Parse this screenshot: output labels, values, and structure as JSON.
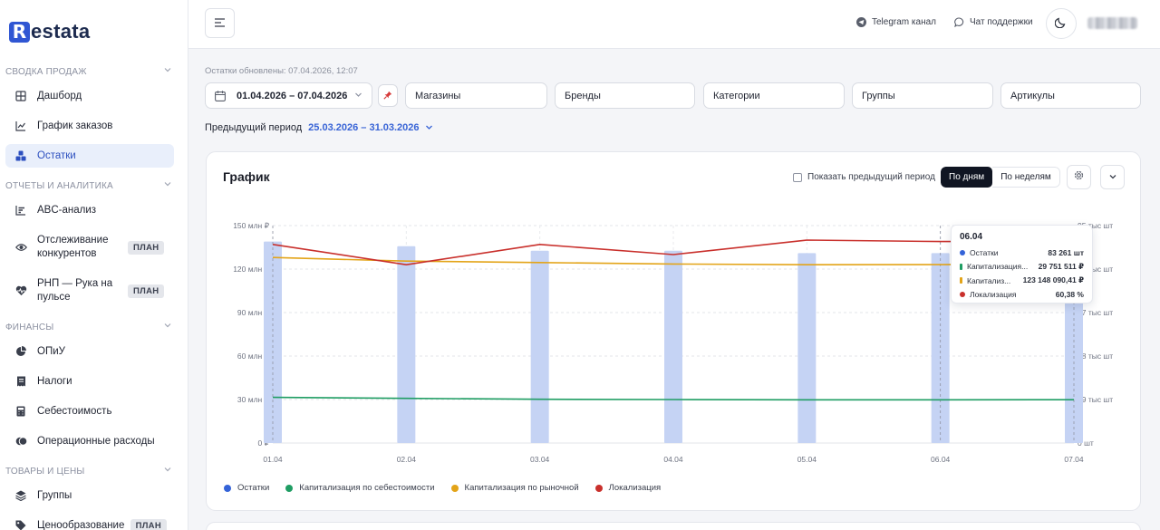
{
  "brand": {
    "logo_letter": "R",
    "logo_rest": "estata",
    "accent": "#3056d3"
  },
  "sidebar": {
    "sections": [
      {
        "label": "СВОДКА ПРОДАЖ"
      },
      {
        "label": "ОТЧЕТЫ И АНАЛИТИКА"
      },
      {
        "label": "ФИНАНСЫ"
      },
      {
        "label": "ТОВАРЫ И ЦЕНЫ"
      }
    ],
    "items": [
      {
        "label": "Дашборд",
        "icon": "grid-icon"
      },
      {
        "label": "График заказов",
        "icon": "line-chart-icon"
      },
      {
        "label": "Остатки",
        "icon": "boxes-icon",
        "active": true
      },
      {
        "label": "ABC-анализ",
        "icon": "bar-list-icon"
      },
      {
        "label": "Отслеживание конкурентов",
        "icon": "eye-icon",
        "badge": "ПЛАН"
      },
      {
        "label": "РНП — Рука на пульсе",
        "icon": "heart-pulse-icon",
        "badge": "ПЛАН"
      },
      {
        "label": "ОПиУ",
        "icon": "pie-chart-icon"
      },
      {
        "label": "Налоги",
        "icon": "receipt-icon"
      },
      {
        "label": "Себестоимость",
        "icon": "calculator-icon"
      },
      {
        "label": "Операционные расходы",
        "icon": "coins-icon"
      },
      {
        "label": "Группы",
        "icon": "stack-icon"
      },
      {
        "label": "Ценообразование",
        "icon": "tag-icon",
        "badge": "ПЛАН"
      }
    ]
  },
  "topbar": {
    "telegram": "Telegram канал",
    "support": "Чат поддержки"
  },
  "filters": {
    "updated": "Остатки обновлены: 07.04.2026, 12:07",
    "date_range": "01.04.2026 – 07.04.2026",
    "stores": "Магазины",
    "brands": "Бренды",
    "categories": "Категории",
    "groups": "Группы",
    "articles": "Артикулы",
    "prev_label": "Предыдущий период",
    "prev_value": "25.03.2026 – 31.03.2026"
  },
  "card": {
    "title": "График",
    "show_prev": "Показать предыдущий период",
    "by_days": "По дням",
    "by_weeks": "По неделям"
  },
  "chart_data": {
    "type": "bar",
    "categories": [
      "01.04",
      "02.04",
      "03.04",
      "04.04",
      "05.04",
      "06.04",
      "07.04"
    ],
    "y_left": {
      "ticks": [
        "0 ₽",
        "30 млн ₽",
        "60 млн ₽",
        "90 млн ₽",
        "120 млн ₽",
        "150 млн ₽"
      ],
      "ylim": [
        0,
        150
      ]
    },
    "y_right": {
      "ticks": [
        "0 шт",
        "19 тыс шт",
        "38 тыс шт",
        "57 тыс шт",
        "76 тыс шт",
        "95 тыс шт"
      ],
      "ylim": [
        0,
        95
      ]
    },
    "grid": true,
    "legend_position": "bottom-left",
    "series": [
      {
        "name": "Остатки",
        "kind": "bar",
        "axis": "right",
        "color": "#c5d3f4",
        "legend_color": "#3463d8",
        "values": [
          88,
          86,
          84,
          84,
          83,
          83,
          83
        ]
      },
      {
        "name": "Капитализация по себестоимости",
        "kind": "line",
        "axis": "left",
        "color": "#1f9d63",
        "values": [
          31.5,
          30.8,
          30.2,
          30,
          29.8,
          29.8,
          29.9
        ]
      },
      {
        "name": "Капитализация по рыночной",
        "kind": "line",
        "axis": "left",
        "color": "#e3a418",
        "values": [
          128,
          125.5,
          124.5,
          123.5,
          123,
          123.1,
          123.5
        ]
      },
      {
        "name": "Локализация",
        "kind": "line",
        "axis": "left",
        "color": "#c9302c",
        "values": [
          137,
          123,
          137,
          130,
          140,
          139,
          139
        ]
      }
    ]
  },
  "tooltip": {
    "date": "06.04",
    "rows": [
      {
        "name": "Остатки",
        "value": "83 261 шт",
        "color": "#3463d8",
        "shape": "dot"
      },
      {
        "name": "Капитализация...",
        "value": "29 751 511 ₽",
        "color": "#1f9d63",
        "shape": "bar"
      },
      {
        "name": "Капитализ...",
        "value": "123 148 090,41 ₽",
        "color": "#e3a418",
        "shape": "bar"
      },
      {
        "name": "Локализация",
        "value": "60,38 %",
        "color": "#c9302c",
        "shape": "dot"
      }
    ]
  }
}
